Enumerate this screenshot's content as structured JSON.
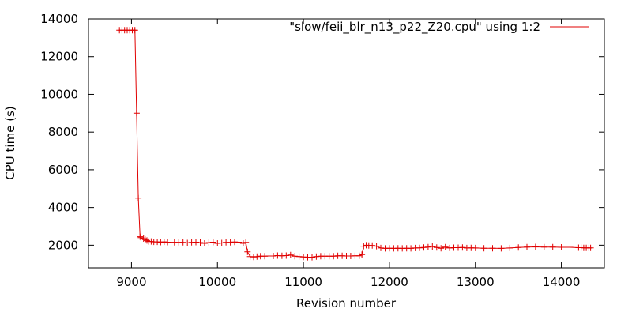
{
  "chart_data": {
    "type": "line",
    "xlabel": "Revision number",
    "ylabel": "CPU time (s)",
    "xlim": [
      8500,
      14500
    ],
    "ylim": [
      800,
      14000
    ],
    "xticks": [
      9000,
      10000,
      11000,
      12000,
      13000,
      14000
    ],
    "yticks": [
      2000,
      4000,
      6000,
      8000,
      10000,
      12000,
      14000
    ],
    "grid": false,
    "legend_position": "top-right",
    "series": [
      {
        "name": "\"slow/feii_blr_n13_p22_Z20.cpu\" using 1:2",
        "color": "#e00000",
        "marker": "plus",
        "x": [
          8860,
          8890,
          8920,
          8950,
          8980,
          9010,
          9030,
          9040,
          9060,
          9080,
          9100,
          9110,
          9140,
          9160,
          9180,
          9200,
          9230,
          9260,
          9300,
          9340,
          9380,
          9420,
          9460,
          9500,
          9550,
          9600,
          9650,
          9700,
          9750,
          9800,
          9850,
          9900,
          9950,
          10000,
          10050,
          10100,
          10150,
          10200,
          10250,
          10300,
          10330,
          10350,
          10380,
          10420,
          10460,
          10500,
          10550,
          10600,
          10650,
          10700,
          10750,
          10800,
          10850,
          10900,
          10950,
          11000,
          11050,
          11100,
          11150,
          11200,
          11250,
          11300,
          11350,
          11400,
          11450,
          11500,
          11550,
          11600,
          11650,
          11680,
          11700,
          11730,
          11760,
          11800,
          11850,
          11900,
          11950,
          12000,
          12050,
          12100,
          12150,
          12200,
          12250,
          12300,
          12350,
          12400,
          12450,
          12500,
          12550,
          12600,
          12650,
          12700,
          12750,
          12800,
          12850,
          12900,
          12950,
          13000,
          13100,
          13200,
          13300,
          13400,
          13500,
          13600,
          13700,
          13800,
          13900,
          14000,
          14100,
          14200,
          14230,
          14260,
          14290,
          14320,
          14340
        ],
        "values": [
          13400,
          13400,
          13400,
          13400,
          13400,
          13400,
          13400,
          13400,
          9000,
          4500,
          2450,
          2400,
          2350,
          2300,
          2250,
          2200,
          2200,
          2180,
          2180,
          2160,
          2180,
          2160,
          2150,
          2150,
          2150,
          2150,
          2120,
          2150,
          2160,
          2140,
          2100,
          2140,
          2160,
          2100,
          2120,
          2150,
          2150,
          2170,
          2160,
          2100,
          2150,
          1650,
          1400,
          1380,
          1400,
          1420,
          1420,
          1430,
          1430,
          1450,
          1440,
          1450,
          1480,
          1420,
          1400,
          1380,
          1360,
          1360,
          1400,
          1420,
          1420,
          1420,
          1420,
          1440,
          1440,
          1430,
          1430,
          1440,
          1440,
          1500,
          1950,
          2000,
          1980,
          1980,
          1950,
          1850,
          1830,
          1840,
          1830,
          1840,
          1830,
          1840,
          1830,
          1850,
          1860,
          1880,
          1900,
          1930,
          1880,
          1840,
          1900,
          1850,
          1870,
          1870,
          1880,
          1850,
          1860,
          1850,
          1840,
          1840,
          1830,
          1850,
          1880,
          1900,
          1910,
          1900,
          1900,
          1890,
          1890,
          1870,
          1870,
          1860,
          1860,
          1850,
          1860
        ]
      }
    ]
  }
}
